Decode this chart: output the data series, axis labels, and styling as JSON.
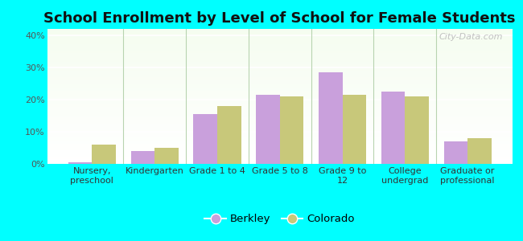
{
  "title": "School Enrollment by Level of School for Female Students",
  "categories": [
    "Nursery,\npreschool",
    "Kindergarten",
    "Grade 1 to 4",
    "Grade 5 to 8",
    "Grade 9 to\n12",
    "College\nundergrad",
    "Graduate or\nprofessional"
  ],
  "berkley": [
    0.5,
    4.0,
    15.5,
    21.5,
    28.5,
    22.5,
    7.0
  ],
  "colorado": [
    6.0,
    5.0,
    18.0,
    21.0,
    21.5,
    21.0,
    8.0
  ],
  "berkley_color": "#c9a0dc",
  "colorado_color": "#c8c87a",
  "background_color": "#00ffff",
  "ylim": [
    0,
    42
  ],
  "yticks": [
    0,
    10,
    20,
    30,
    40
  ],
  "ytick_labels": [
    "0%",
    "10%",
    "20%",
    "30%",
    "40%"
  ],
  "legend_labels": [
    "Berkley",
    "Colorado"
  ],
  "title_fontsize": 13,
  "tick_fontsize": 8.0,
  "legend_fontsize": 9.5,
  "bar_width": 0.38
}
